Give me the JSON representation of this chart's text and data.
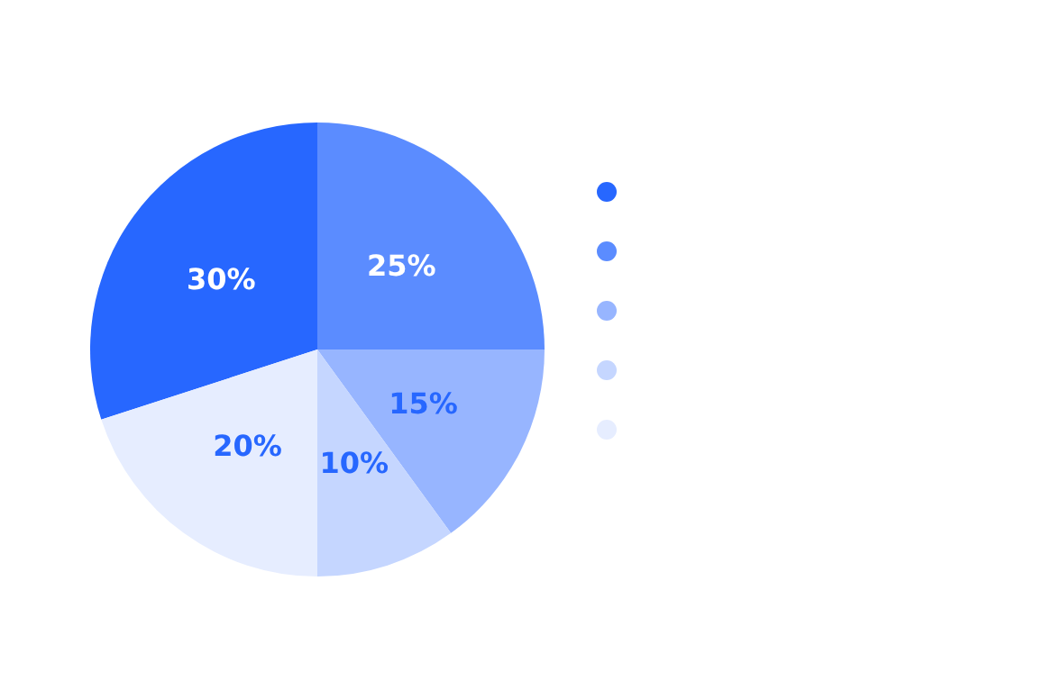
{
  "chart_data": {
    "type": "pie",
    "categories": [
      null,
      null,
      null,
      null,
      null
    ],
    "values": [
      30,
      25,
      15,
      10,
      20
    ],
    "colors": [
      "#2767ff",
      "#5b8cff",
      "#97b5ff",
      "#c5d6ff",
      "#e6edff"
    ],
    "value_labels": [
      "30%",
      "25%",
      "15%",
      "10%",
      "20%"
    ]
  }
}
